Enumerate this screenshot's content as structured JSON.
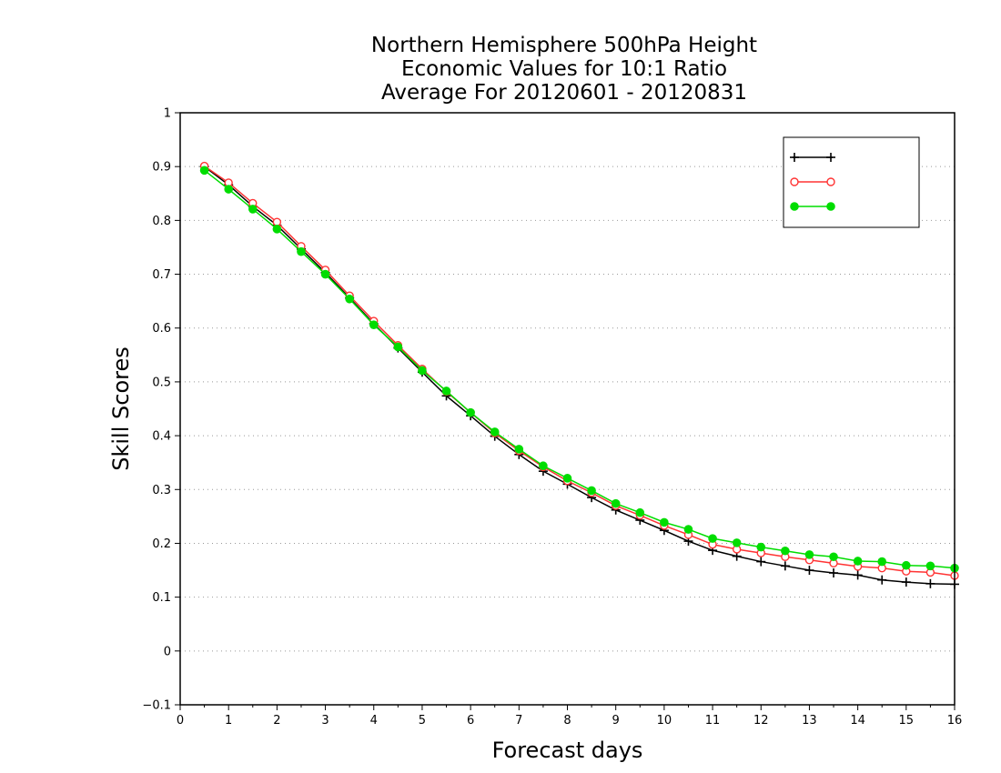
{
  "chart_data": {
    "type": "line",
    "title_lines": [
      "Northern Hemisphere 500hPa Height",
      "Economic Values for 10:1 Ratio",
      "Average For 20120601 - 20120831"
    ],
    "xlabel": "Forecast days",
    "ylabel": "Skill Scores",
    "xlim": [
      0,
      16
    ],
    "ylim": [
      -0.1,
      1
    ],
    "x_ticks": [
      0,
      1,
      2,
      3,
      4,
      5,
      6,
      7,
      8,
      9,
      10,
      11,
      12,
      13,
      14,
      15,
      16
    ],
    "y_ticks": [
      -0.1,
      0,
      0.1,
      0.2,
      0.3,
      0.4,
      0.5,
      0.6,
      0.7,
      0.8,
      0.9,
      1
    ],
    "grid": "horizontal dotted",
    "legend_placement": "top-right",
    "x": [
      0.5,
      1,
      1.5,
      2,
      2.5,
      3,
      3.5,
      4,
      4.5,
      5,
      5.5,
      6,
      6.5,
      7,
      7.5,
      8,
      8.5,
      9,
      9.5,
      10,
      10.5,
      11,
      11.5,
      12,
      12.5,
      13,
      13.5,
      14,
      14.5,
      15,
      15.5,
      16
    ],
    "series": [
      {
        "name": "",
        "color": "#000000",
        "marker": "plus",
        "values": [
          0.9,
          0.866,
          0.826,
          0.791,
          0.747,
          0.703,
          0.656,
          0.608,
          0.563,
          0.518,
          0.474,
          0.437,
          0.399,
          0.365,
          0.334,
          0.31,
          0.285,
          0.262,
          0.243,
          0.224,
          0.204,
          0.187,
          0.176,
          0.166,
          0.158,
          0.15,
          0.145,
          0.141,
          0.132,
          0.128,
          0.125,
          0.124
        ]
      },
      {
        "name": "",
        "color": "#ff3333",
        "marker": "open-circle",
        "values": [
          0.901,
          0.87,
          0.832,
          0.797,
          0.752,
          0.708,
          0.66,
          0.613,
          0.568,
          0.524,
          0.482,
          0.443,
          0.405,
          0.372,
          0.342,
          0.316,
          0.294,
          0.27,
          0.252,
          0.233,
          0.216,
          0.198,
          0.189,
          0.182,
          0.175,
          0.169,
          0.163,
          0.157,
          0.154,
          0.148,
          0.146,
          0.14
        ]
      },
      {
        "name": "",
        "color": "#00dd00",
        "marker": "filled-circle",
        "values": [
          0.893,
          0.858,
          0.821,
          0.784,
          0.742,
          0.7,
          0.654,
          0.606,
          0.565,
          0.521,
          0.483,
          0.443,
          0.407,
          0.375,
          0.344,
          0.321,
          0.298,
          0.274,
          0.257,
          0.239,
          0.226,
          0.209,
          0.201,
          0.193,
          0.186,
          0.179,
          0.175,
          0.167,
          0.166,
          0.159,
          0.158,
          0.154
        ]
      }
    ]
  }
}
